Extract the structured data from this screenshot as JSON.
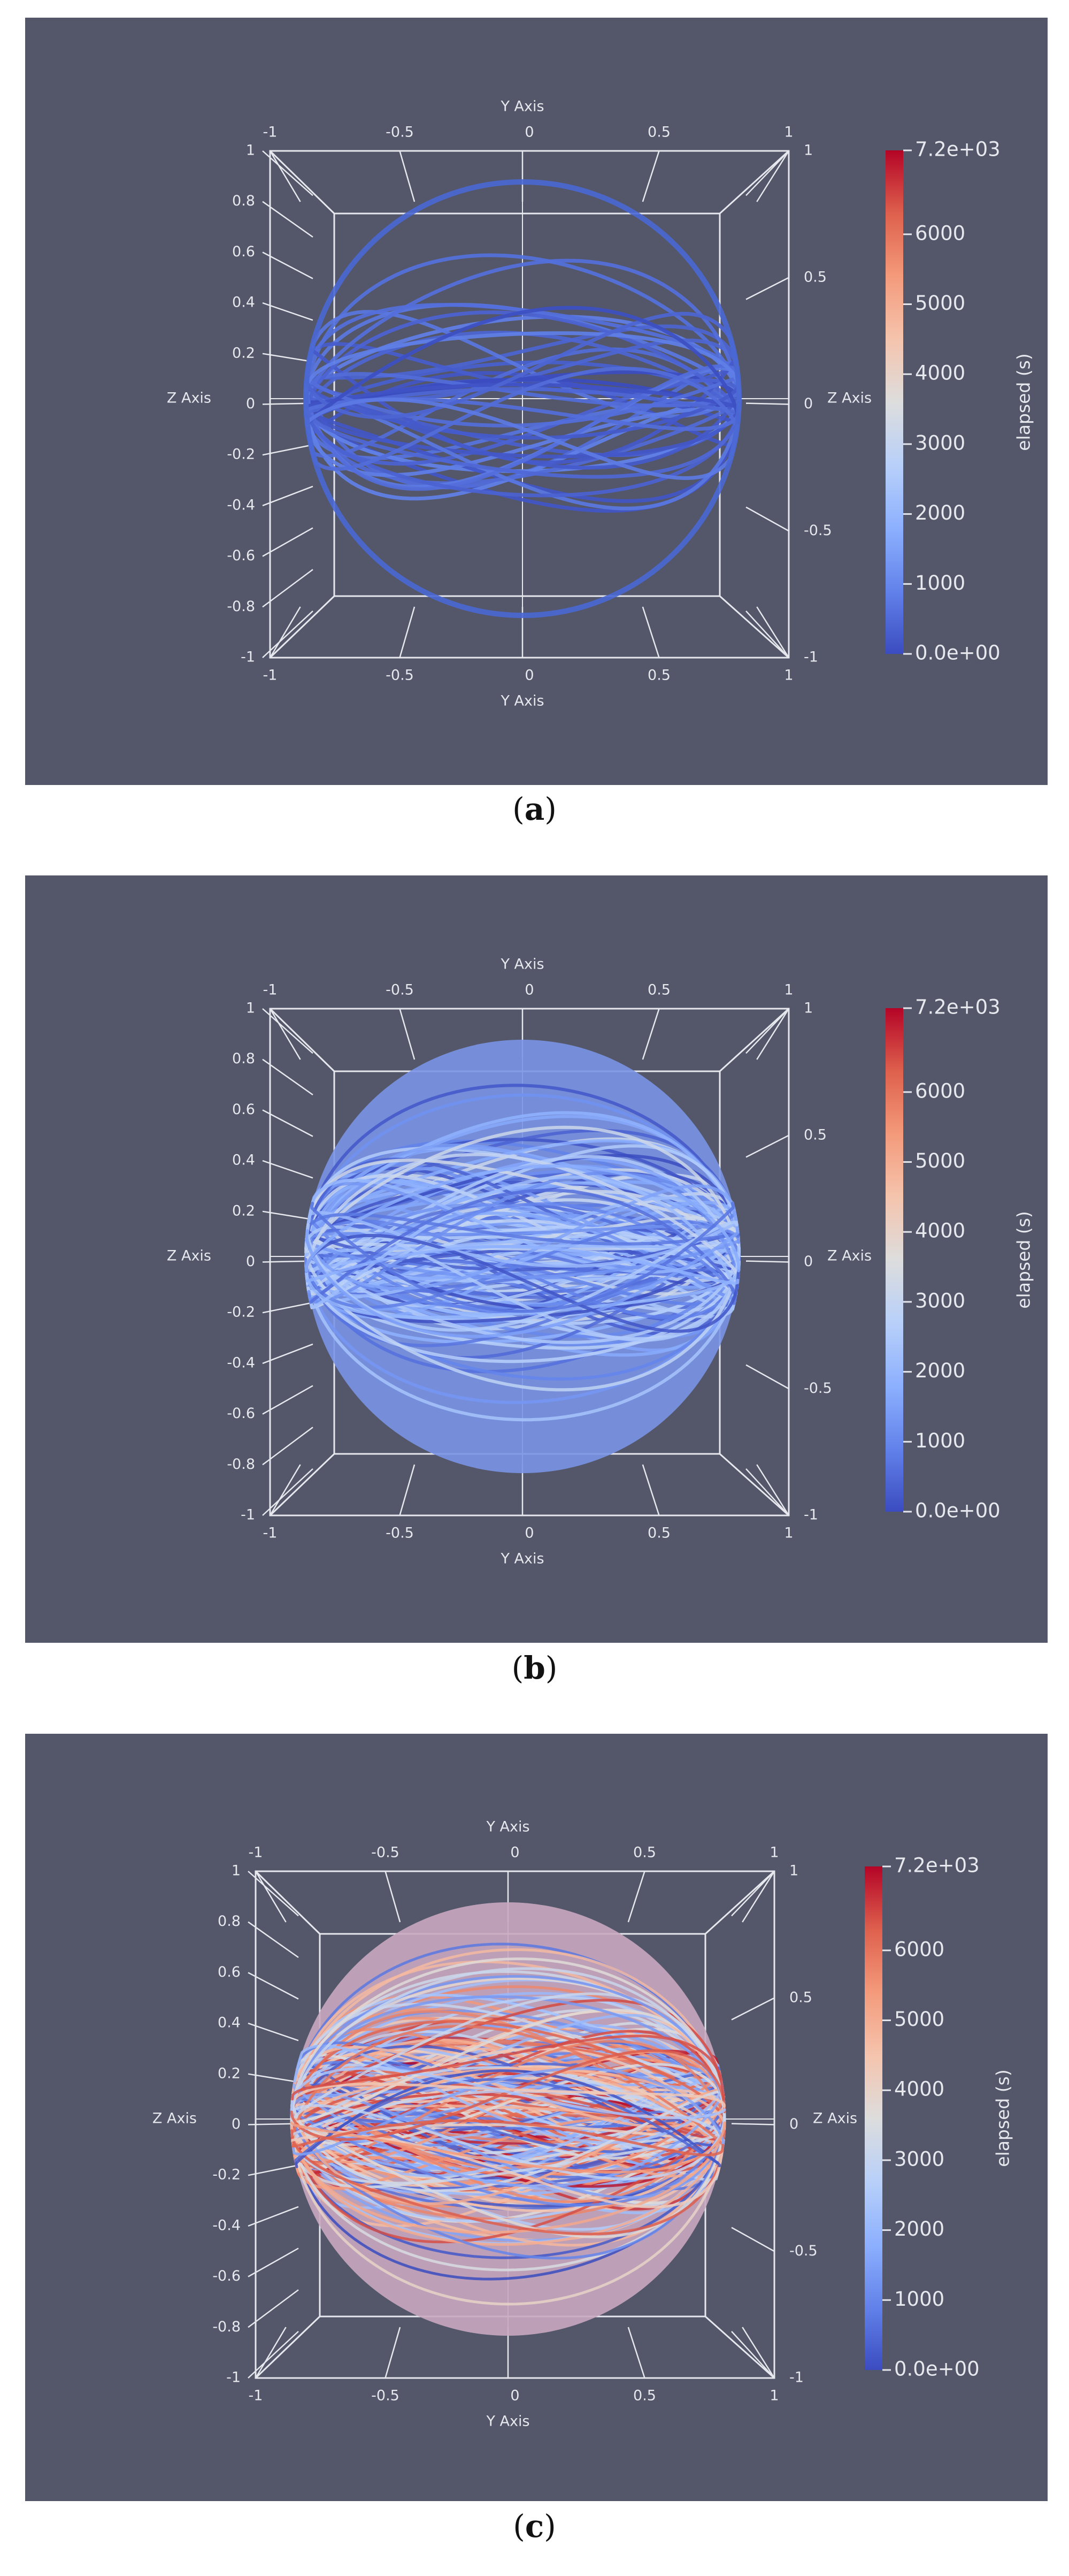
{
  "figure": {
    "panels": [
      {
        "label": "a"
      },
      {
        "label": "b"
      },
      {
        "label": "c"
      }
    ]
  },
  "chart_data": [
    {
      "type": "scatter",
      "panel": "a",
      "description_type": "3d-trajectory-sphere",
      "xlabel": "Y Axis",
      "ylabel": "Z Axis",
      "x_ticks": [
        "-1",
        "-0.5",
        "0",
        "0.5",
        "1"
      ],
      "y_ticks_left": [
        "1",
        "0.8",
        "0.6",
        "0.4",
        "0.2",
        "0",
        "-0.2",
        "-0.4",
        "-0.6",
        "-0.8",
        "-1"
      ],
      "y_ticks_right": [
        "1",
        "0.5",
        "0",
        "-0.5",
        "-1"
      ],
      "colorbar": {
        "label": "elapsed (s)",
        "min": 0,
        "max": 7200,
        "tick_labels": [
          "7.2e+03",
          "6000",
          "5000",
          "4000",
          "3000",
          "2000",
          "1000",
          "0.0e+00"
        ],
        "colormap": "coolwarm"
      },
      "elapsed_max_s": 900,
      "density": "sparse",
      "colors": {
        "background": "#545769",
        "axes": "#e6e8ee"
      }
    },
    {
      "type": "scatter",
      "panel": "b",
      "description_type": "3d-trajectory-sphere",
      "xlabel": "Y Axis",
      "ylabel": "Z Axis",
      "x_ticks": [
        "-1",
        "-0.5",
        "0",
        "0.5",
        "1"
      ],
      "y_ticks_left": [
        "1",
        "0.8",
        "0.6",
        "0.4",
        "0.2",
        "0",
        "-0.2",
        "-0.4",
        "-0.6",
        "-0.8",
        "-1"
      ],
      "y_ticks_right": [
        "1",
        "0.5",
        "0",
        "-0.5",
        "-1"
      ],
      "colorbar": {
        "label": "elapsed (s)",
        "min": 0,
        "max": 7200,
        "tick_labels": [
          "7.2e+03",
          "6000",
          "5000",
          "4000",
          "3000",
          "2000",
          "1000",
          "0.0e+00"
        ],
        "colormap": "coolwarm"
      },
      "elapsed_max_s": 3300,
      "density": "dense",
      "colors": {
        "background": "#545769",
        "axes": "#e6e8ee"
      }
    },
    {
      "type": "scatter",
      "panel": "c",
      "description_type": "3d-trajectory-sphere",
      "xlabel": "Y Axis",
      "ylabel": "Z Axis",
      "x_ticks": [
        "-1",
        "-0.5",
        "0",
        "0.5",
        "1"
      ],
      "y_ticks_left": [
        "1",
        "0.8",
        "0.6",
        "0.4",
        "0.2",
        "0",
        "-0.2",
        "-0.4",
        "-0.6",
        "-0.8",
        "-1"
      ],
      "y_ticks_right": [
        "1",
        "0.5",
        "0",
        "-0.5",
        "-1"
      ],
      "colorbar": {
        "label": "elapsed (s)",
        "min": 0,
        "max": 7200,
        "tick_labels": [
          "7.2e+03",
          "6000",
          "5000",
          "4000",
          "3000",
          "2000",
          "1000",
          "0.0e+00"
        ],
        "colormap": "coolwarm"
      },
      "elapsed_max_s": 7200,
      "density": "very-dense",
      "colors": {
        "background": "#545769",
        "axes": "#e6e8ee"
      }
    }
  ]
}
